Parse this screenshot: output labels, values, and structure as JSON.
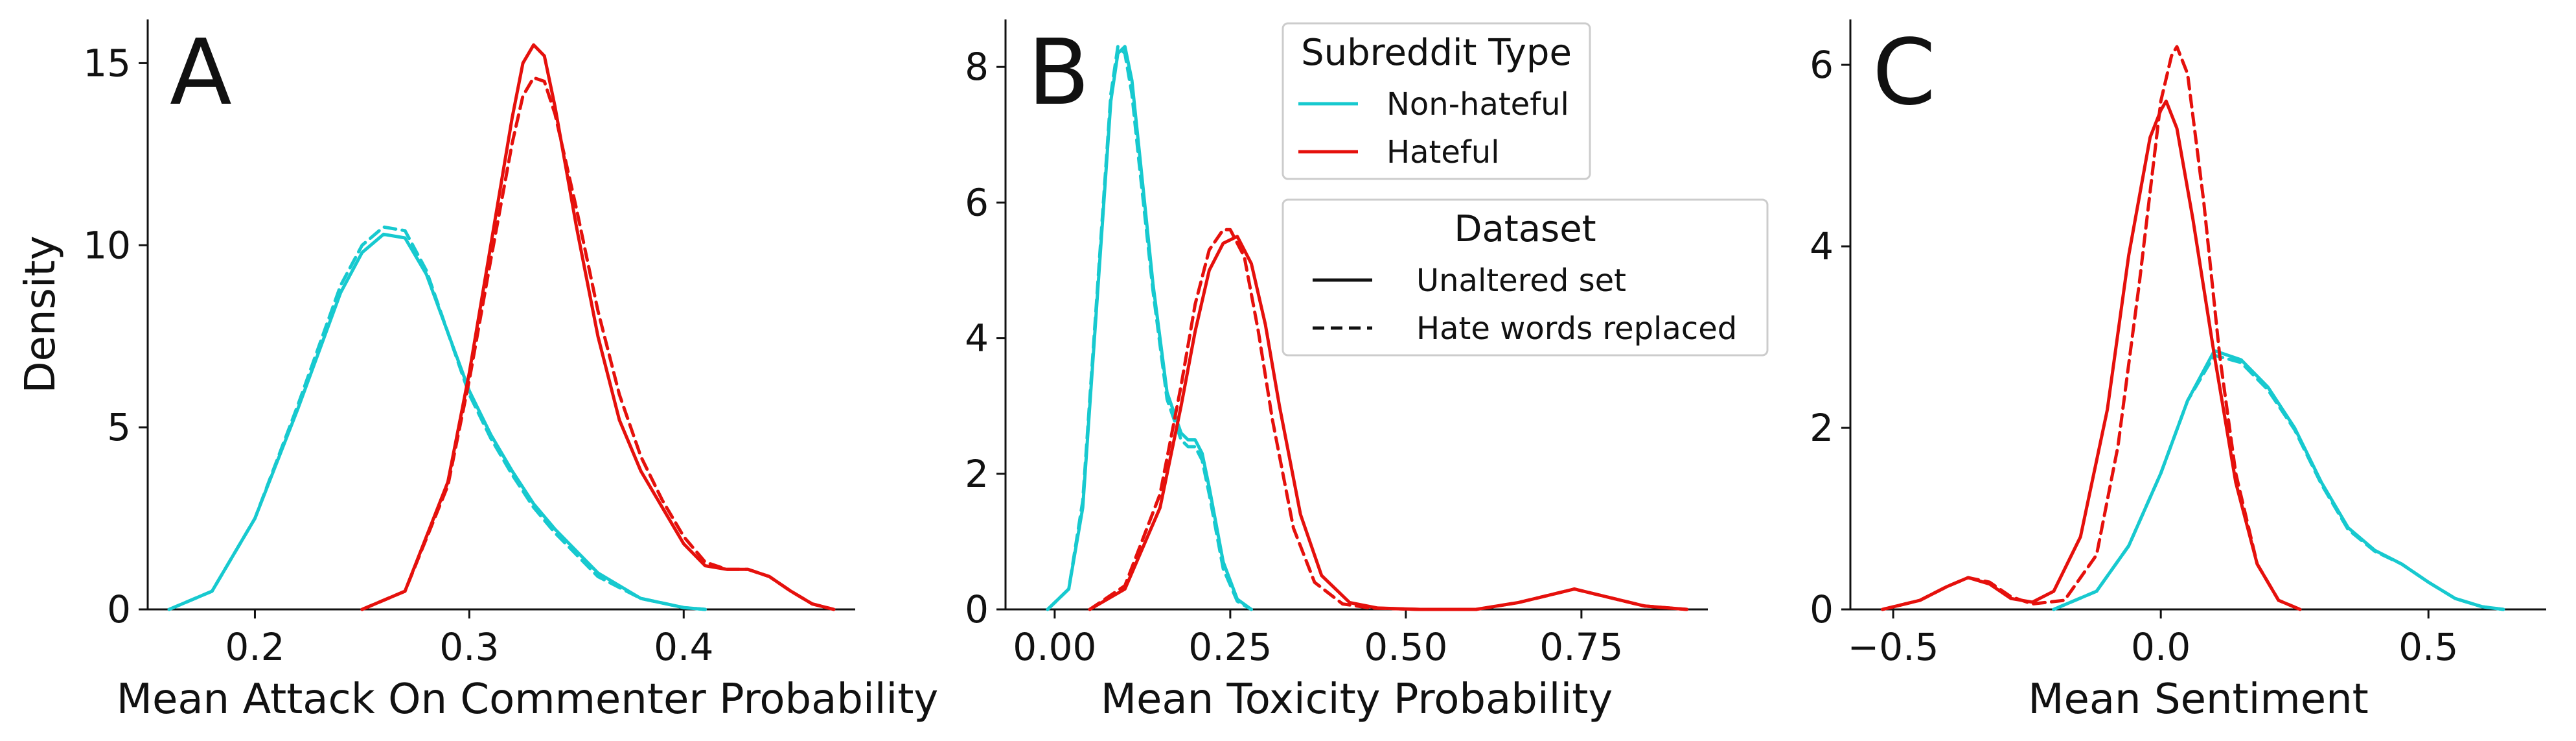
{
  "colors": {
    "non_hateful": "#17c9cf",
    "hateful": "#e5100c",
    "axis": "#111111",
    "legend_border": "#cccccc"
  },
  "legend": {
    "subreddit_title": "Subreddit Type",
    "subreddit_entries": [
      {
        "label": "Non-hateful",
        "color": "#17c9cf",
        "style": "solid"
      },
      {
        "label": "Hateful",
        "color": "#e5100c",
        "style": "solid"
      }
    ],
    "dataset_title": "Dataset",
    "dataset_entries": [
      {
        "label": "Unaltered set",
        "style": "solid"
      },
      {
        "label": "Hate words replaced",
        "style": "dashed"
      }
    ]
  },
  "chart_data": [
    {
      "type": "line",
      "panel_letter": "A",
      "xlabel": "Mean Attack On Commenter Probability",
      "ylabel": "Density",
      "xlim": [
        0.15,
        0.48
      ],
      "ylim": [
        0,
        16.2
      ],
      "xticks": [
        0.2,
        0.3,
        0.4
      ],
      "xtick_labels": [
        "0.2",
        "0.3",
        "0.4"
      ],
      "yticks": [
        0,
        5,
        10,
        15
      ],
      "ytick_labels": [
        "0",
        "5",
        "10",
        "15"
      ],
      "series": [
        {
          "group": "Non-hateful",
          "dataset": "Unaltered set",
          "x": [
            0.16,
            0.18,
            0.2,
            0.22,
            0.24,
            0.25,
            0.26,
            0.27,
            0.28,
            0.29,
            0.3,
            0.31,
            0.32,
            0.33,
            0.34,
            0.36,
            0.38,
            0.4,
            0.41
          ],
          "y": [
            0,
            0.5,
            2.5,
            5.5,
            8.7,
            9.8,
            10.3,
            10.2,
            9.2,
            7.6,
            6.0,
            4.8,
            3.8,
            2.9,
            2.2,
            1.0,
            0.3,
            0.05,
            0
          ]
        },
        {
          "group": "Non-hateful",
          "dataset": "Hate words replaced",
          "x": [
            0.16,
            0.18,
            0.2,
            0.22,
            0.24,
            0.25,
            0.26,
            0.27,
            0.28,
            0.29,
            0.3,
            0.31,
            0.32,
            0.33,
            0.34,
            0.36,
            0.38,
            0.4,
            0.41
          ],
          "y": [
            0,
            0.5,
            2.5,
            5.6,
            8.9,
            10.0,
            10.5,
            10.4,
            9.3,
            7.6,
            5.9,
            4.7,
            3.7,
            2.8,
            2.1,
            0.9,
            0.3,
            0.05,
            0
          ]
        },
        {
          "group": "Hateful",
          "dataset": "Unaltered set",
          "x": [
            0.25,
            0.27,
            0.29,
            0.3,
            0.31,
            0.32,
            0.325,
            0.33,
            0.335,
            0.34,
            0.35,
            0.36,
            0.37,
            0.38,
            0.39,
            0.4,
            0.41,
            0.42,
            0.43,
            0.44,
            0.45,
            0.46,
            0.47
          ],
          "y": [
            0,
            0.5,
            3.5,
            6.5,
            10.0,
            13.5,
            15.0,
            15.5,
            15.2,
            13.8,
            10.5,
            7.5,
            5.2,
            3.8,
            2.8,
            1.8,
            1.2,
            1.1,
            1.1,
            0.9,
            0.5,
            0.15,
            0
          ]
        },
        {
          "group": "Hateful",
          "dataset": "Hate words replaced",
          "x": [
            0.25,
            0.27,
            0.29,
            0.3,
            0.31,
            0.32,
            0.325,
            0.33,
            0.335,
            0.34,
            0.35,
            0.36,
            0.37,
            0.38,
            0.39,
            0.4,
            0.41,
            0.42,
            0.43,
            0.44,
            0.45,
            0.46,
            0.47
          ],
          "y": [
            0,
            0.5,
            3.4,
            6.3,
            9.6,
            12.8,
            14.1,
            14.6,
            14.5,
            13.6,
            11.0,
            8.2,
            5.9,
            4.2,
            3.0,
            2.0,
            1.3,
            1.1,
            1.1,
            0.9,
            0.5,
            0.15,
            0
          ]
        }
      ]
    },
    {
      "type": "line",
      "panel_letter": "B",
      "xlabel": "Mean Toxicity Probability",
      "ylabel": "",
      "xlim": [
        -0.07,
        0.93
      ],
      "ylim": [
        0,
        8.7
      ],
      "xticks": [
        0.0,
        0.25,
        0.5,
        0.75
      ],
      "xtick_labels": [
        "0.00",
        "0.25",
        "0.50",
        "0.75"
      ],
      "yticks": [
        0,
        2,
        4,
        6,
        8
      ],
      "ytick_labels": [
        "0",
        "2",
        "4",
        "6",
        "8"
      ],
      "series": [
        {
          "group": "Non-hateful",
          "dataset": "Unaltered set",
          "x": [
            -0.01,
            0.02,
            0.04,
            0.06,
            0.08,
            0.09,
            0.1,
            0.11,
            0.12,
            0.14,
            0.16,
            0.18,
            0.19,
            0.2,
            0.21,
            0.22,
            0.24,
            0.26,
            0.28
          ],
          "y": [
            0,
            0.3,
            1.5,
            4.5,
            7.5,
            8.2,
            8.3,
            7.8,
            6.8,
            4.8,
            3.2,
            2.6,
            2.5,
            2.5,
            2.3,
            1.8,
            0.7,
            0.15,
            0
          ]
        },
        {
          "group": "Non-hateful",
          "dataset": "Hate words replaced",
          "x": [
            -0.01,
            0.02,
            0.04,
            0.06,
            0.08,
            0.09,
            0.1,
            0.11,
            0.12,
            0.14,
            0.16,
            0.18,
            0.19,
            0.2,
            0.21,
            0.22,
            0.24,
            0.26,
            0.28
          ],
          "y": [
            0,
            0.3,
            1.6,
            4.6,
            7.6,
            8.3,
            8.2,
            7.6,
            6.6,
            4.7,
            3.1,
            2.5,
            2.4,
            2.4,
            2.2,
            1.7,
            0.6,
            0.12,
            0
          ]
        },
        {
          "group": "Hateful",
          "dataset": "Unaltered set",
          "x": [
            0.05,
            0.1,
            0.15,
            0.18,
            0.2,
            0.22,
            0.24,
            0.26,
            0.28,
            0.3,
            0.32,
            0.35,
            0.38,
            0.42,
            0.46,
            0.52,
            0.6,
            0.66,
            0.7,
            0.74,
            0.78,
            0.84,
            0.9
          ],
          "y": [
            0,
            0.3,
            1.5,
            3.0,
            4.1,
            5.0,
            5.4,
            5.5,
            5.1,
            4.2,
            3.0,
            1.4,
            0.5,
            0.1,
            0.02,
            0,
            0,
            0.1,
            0.2,
            0.3,
            0.2,
            0.05,
            0
          ]
        },
        {
          "group": "Hateful",
          "dataset": "Hate words replaced",
          "x": [
            0.05,
            0.1,
            0.15,
            0.18,
            0.2,
            0.22,
            0.24,
            0.25,
            0.27,
            0.29,
            0.31,
            0.34,
            0.37,
            0.41,
            0.45,
            0.52,
            0.6,
            0.66,
            0.7,
            0.74,
            0.78,
            0.84,
            0.9
          ],
          "y": [
            0,
            0.35,
            1.7,
            3.3,
            4.5,
            5.3,
            5.6,
            5.6,
            5.2,
            4.1,
            2.8,
            1.2,
            0.4,
            0.08,
            0.02,
            0,
            0,
            0.1,
            0.2,
            0.3,
            0.2,
            0.05,
            0
          ]
        }
      ]
    },
    {
      "type": "line",
      "panel_letter": "C",
      "xlabel": "Mean Sentiment",
      "ylabel": "",
      "xlim": [
        -0.58,
        0.72
      ],
      "ylim": [
        0,
        6.5
      ],
      "xticks": [
        -0.5,
        0.0,
        0.5
      ],
      "xtick_labels": [
        "−0.5",
        "0.0",
        "0.5"
      ],
      "yticks": [
        0,
        2,
        4,
        6
      ],
      "ytick_labels": [
        "0",
        "2",
        "4",
        "6"
      ],
      "series": [
        {
          "group": "Non-hateful",
          "dataset": "Unaltered set",
          "x": [
            -0.2,
            -0.12,
            -0.06,
            0.0,
            0.05,
            0.1,
            0.15,
            0.2,
            0.25,
            0.3,
            0.35,
            0.4,
            0.45,
            0.5,
            0.55,
            0.6,
            0.64
          ],
          "y": [
            0,
            0.2,
            0.7,
            1.5,
            2.3,
            2.85,
            2.75,
            2.45,
            2.0,
            1.4,
            0.9,
            0.65,
            0.5,
            0.3,
            0.12,
            0.03,
            0
          ]
        },
        {
          "group": "Non-hateful",
          "dataset": "Hate words replaced",
          "x": [
            -0.2,
            -0.12,
            -0.06,
            0.0,
            0.05,
            0.1,
            0.15,
            0.2,
            0.25,
            0.3,
            0.35,
            0.4,
            0.45,
            0.5,
            0.55,
            0.6,
            0.64
          ],
          "y": [
            0,
            0.2,
            0.7,
            1.5,
            2.3,
            2.8,
            2.72,
            2.42,
            1.98,
            1.38,
            0.88,
            0.64,
            0.5,
            0.3,
            0.12,
            0.03,
            0
          ]
        },
        {
          "group": "Hateful",
          "dataset": "Unaltered set",
          "x": [
            -0.52,
            -0.45,
            -0.4,
            -0.36,
            -0.32,
            -0.28,
            -0.24,
            -0.2,
            -0.15,
            -0.1,
            -0.06,
            -0.02,
            0.0,
            0.01,
            0.03,
            0.06,
            0.1,
            0.14,
            0.18,
            0.22,
            0.26
          ],
          "y": [
            0,
            0.1,
            0.25,
            0.35,
            0.28,
            0.12,
            0.08,
            0.2,
            0.8,
            2.2,
            3.9,
            5.2,
            5.5,
            5.6,
            5.3,
            4.3,
            2.8,
            1.4,
            0.5,
            0.1,
            0
          ]
        },
        {
          "group": "Hateful",
          "dataset": "Hate words replaced",
          "x": [
            -0.52,
            -0.45,
            -0.4,
            -0.36,
            -0.32,
            -0.28,
            -0.24,
            -0.18,
            -0.12,
            -0.08,
            -0.04,
            0.0,
            0.02,
            0.03,
            0.05,
            0.08,
            0.11,
            0.14,
            0.18,
            0.22,
            0.26
          ],
          "y": [
            0,
            0.1,
            0.25,
            0.35,
            0.3,
            0.14,
            0.06,
            0.1,
            0.6,
            1.8,
            3.6,
            5.6,
            6.1,
            6.2,
            5.9,
            4.5,
            2.8,
            1.5,
            0.5,
            0.1,
            0
          ]
        }
      ]
    }
  ]
}
